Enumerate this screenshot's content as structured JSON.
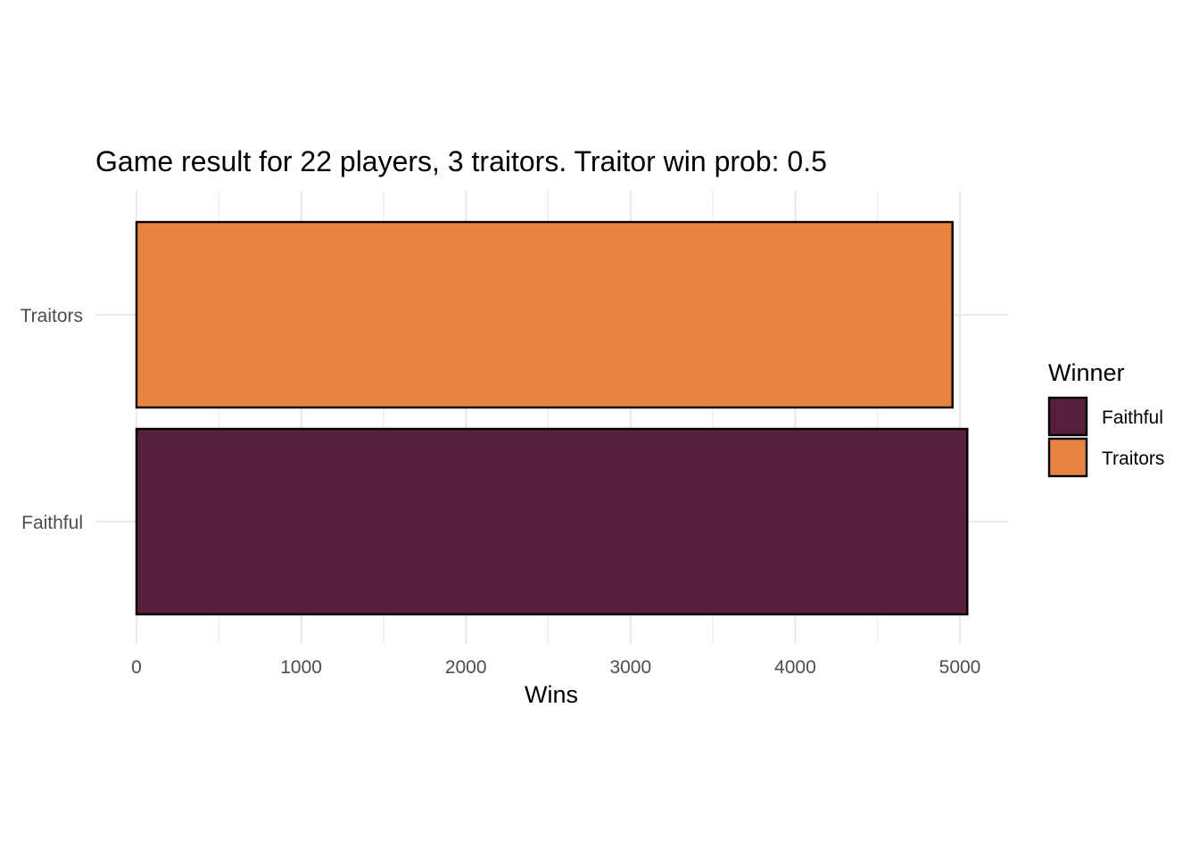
{
  "chart_data": {
    "type": "bar",
    "orientation": "horizontal",
    "title": "Game result for 22 players, 3 traitors. Traitor win prob: 0.5",
    "xlabel": "Wins",
    "ylabel": "",
    "categories": [
      "Faithful",
      "Traitors"
    ],
    "values": [
      5045,
      4955
    ],
    "colors": [
      "#561F3B",
      "#E8833F"
    ],
    "xlim": [
      0,
      5300
    ],
    "xticks": [
      0,
      1000,
      2000,
      3000,
      4000,
      5000
    ],
    "xtick_labels": [
      "0",
      "1000",
      "2000",
      "3000",
      "4000",
      "5000"
    ],
    "grid": true,
    "legend": {
      "title": "Winner",
      "position": "right",
      "entries": [
        {
          "label": "Faithful",
          "color": "#561F3B"
        },
        {
          "label": "Traitors",
          "color": "#E8833F"
        }
      ]
    }
  }
}
